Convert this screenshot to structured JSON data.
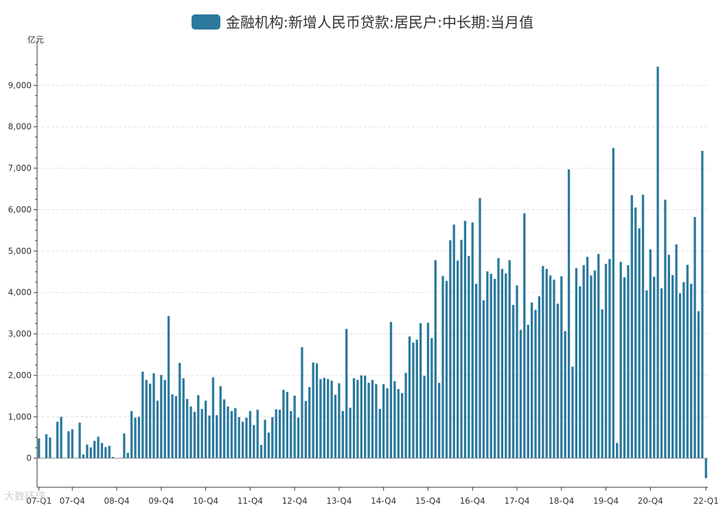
{
  "legend": {
    "label": "金融机构:新增人民币贷款:居民户:中长期:当月值",
    "color": "#2b7a9e"
  },
  "watermark": "大数环球",
  "chart_data": {
    "type": "bar",
    "title": "金融机构:新增人民币贷款:居民户:中长期:当月值",
    "ylabel": "亿元",
    "ylim": [
      -700,
      9900
    ],
    "yticks": [
      0,
      1000,
      2000,
      3000,
      4000,
      5000,
      6000,
      7000,
      8000,
      9000
    ],
    "ytick_labels": [
      "0",
      "1,000",
      "2,000",
      "3,000",
      "4,000",
      "5,000",
      "6,000",
      "7,000",
      "8,000",
      "9,000"
    ],
    "grid": true,
    "color": "#2b7a9e",
    "xtick_labels": [
      "07-Q1",
      "07-Q4",
      "08-Q4",
      "09-Q4",
      "10-Q4",
      "11-Q4",
      "12-Q4",
      "13-Q4",
      "14-Q4",
      "15-Q4",
      "16-Q4",
      "17-Q4",
      "18-Q4",
      "19-Q4",
      "20-Q4",
      "22-Q1"
    ],
    "xtick_index": [
      0,
      9,
      21,
      33,
      45,
      57,
      69,
      81,
      93,
      105,
      117,
      129,
      141,
      153,
      165,
      180
    ],
    "start": "2007-01",
    "values": [
      480,
      0,
      580,
      500,
      0,
      880,
      1000,
      0,
      650,
      700,
      0,
      860,
      90,
      330,
      260,
      420,
      520,
      370,
      270,
      300,
      30,
      0,
      0,
      600,
      130,
      1140,
      980,
      1000,
      2090,
      1890,
      1800,
      2050,
      1390,
      2010,
      1890,
      3430,
      1540,
      1500,
      2300,
      1930,
      1430,
      1250,
      1120,
      1520,
      1190,
      1390,
      1030,
      1950,
      1040,
      1740,
      1420,
      1250,
      1140,
      1210,
      990,
      880,
      980,
      1140,
      800,
      1170,
      320,
      930,
      620,
      990,
      1180,
      1170,
      1650,
      1600,
      1140,
      1510,
      980,
      2680,
      1380,
      1720,
      2310,
      2290,
      1910,
      1940,
      1910,
      1870,
      1530,
      1810,
      1140,
      3120,
      1220,
      1930,
      1890,
      2000,
      1990,
      1820,
      1890,
      1790,
      1190,
      1790,
      1690,
      3290,
      1860,
      1670,
      1570,
      2060,
      2940,
      2790,
      2860,
      3260,
      1990,
      3270,
      2900,
      4780,
      1820,
      4400,
      4280,
      5260,
      5640,
      4770,
      5270,
      5730,
      4880,
      5690,
      4210,
      6280,
      3810,
      4510,
      4450,
      4330,
      4830,
      4570,
      4460,
      4780,
      3700,
      4170,
      3100,
      5910,
      3220,
      3760,
      3580,
      3910,
      4640,
      4570,
      4410,
      4310,
      3730,
      4390,
      3070,
      6970,
      2210,
      4590,
      4150,
      4660,
      4860,
      4410,
      4530,
      4930,
      3590,
      4690,
      4810,
      7490,
      370,
      4740,
      4370,
      4660,
      6350,
      6050,
      5550,
      6360,
      4050,
      5040,
      4380,
      9450,
      4100,
      6240,
      4910,
      4420,
      5160,
      3980,
      4250,
      4670,
      4210,
      5820,
      3550,
      7420,
      -480
    ]
  }
}
